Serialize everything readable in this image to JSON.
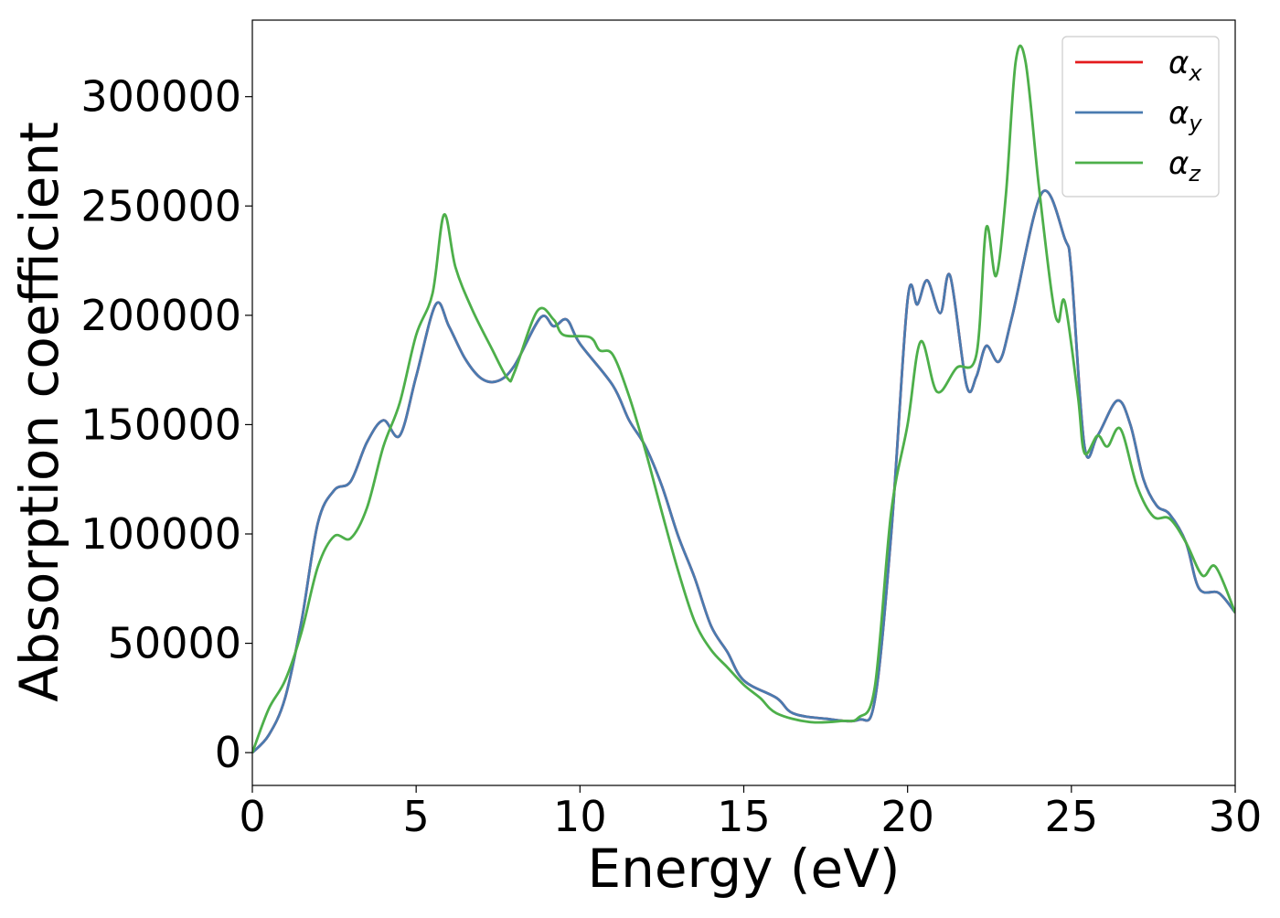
{
  "chart_data": {
    "type": "line",
    "title": "",
    "xlabel": "Energy (eV)",
    "ylabel": "Absorption coefficient",
    "xlim": [
      0,
      30
    ],
    "ylim": [
      -15000,
      335000
    ],
    "x_ticks": [
      0,
      5,
      10,
      15,
      20,
      25,
      30
    ],
    "y_ticks": [
      0,
      50000,
      100000,
      150000,
      200000,
      250000,
      300000
    ],
    "grid": false,
    "legend_position": "top-right",
    "series": [
      {
        "name": "α_x",
        "legend_base": "α",
        "legend_sub": "x",
        "color": "#e41a1c",
        "points": [
          [
            0,
            0
          ],
          [
            0.5,
            8000
          ],
          [
            1,
            25000
          ],
          [
            1.5,
            60000
          ],
          [
            2,
            105000
          ],
          [
            2.5,
            120000
          ],
          [
            3,
            124000
          ],
          [
            3.5,
            142000
          ],
          [
            4,
            152000
          ],
          [
            4.5,
            145000
          ],
          [
            5,
            172000
          ],
          [
            5.6,
            205000
          ],
          [
            6,
            195000
          ],
          [
            6.5,
            180000
          ],
          [
            7,
            171000
          ],
          [
            7.5,
            170000
          ],
          [
            8,
            177000
          ],
          [
            8.8,
            199000
          ],
          [
            9.2,
            195000
          ],
          [
            9.6,
            198000
          ],
          [
            10,
            187000
          ],
          [
            11,
            168000
          ],
          [
            11.5,
            152000
          ],
          [
            12,
            140000
          ],
          [
            12.5,
            122000
          ],
          [
            13,
            99000
          ],
          [
            13.5,
            80000
          ],
          [
            14,
            58000
          ],
          [
            14.5,
            46000
          ],
          [
            15,
            33000
          ],
          [
            16,
            25000
          ],
          [
            16.5,
            18000
          ],
          [
            17.5,
            15500
          ],
          [
            18.5,
            15000
          ],
          [
            19,
            24000
          ],
          [
            19.5,
            100000
          ],
          [
            20,
            207000
          ],
          [
            20.3,
            205000
          ],
          [
            20.6,
            216000
          ],
          [
            21,
            201000
          ],
          [
            21.3,
            218000
          ],
          [
            21.8,
            168000
          ],
          [
            22.1,
            172000
          ],
          [
            22.4,
            186000
          ],
          [
            22.8,
            179000
          ],
          [
            23.2,
            200000
          ],
          [
            24.1,
            256000
          ],
          [
            24.8,
            235000
          ],
          [
            25,
            220000
          ],
          [
            25.4,
            140000
          ],
          [
            25.8,
            145000
          ],
          [
            26.4,
            161000
          ],
          [
            26.8,
            150000
          ],
          [
            27.2,
            125000
          ],
          [
            27.6,
            113000
          ],
          [
            28,
            109000
          ],
          [
            28.5,
            96000
          ],
          [
            28.9,
            75000
          ],
          [
            29.5,
            73000
          ],
          [
            30,
            64000
          ]
        ]
      },
      {
        "name": "α_y",
        "legend_base": "α",
        "legend_sub": "y",
        "color": "#4a7bb0",
        "points": [
          [
            0,
            0
          ],
          [
            0.5,
            8000
          ],
          [
            1,
            25000
          ],
          [
            1.5,
            60000
          ],
          [
            2,
            105000
          ],
          [
            2.5,
            120000
          ],
          [
            3,
            124000
          ],
          [
            3.5,
            142000
          ],
          [
            4,
            152000
          ],
          [
            4.5,
            145000
          ],
          [
            5,
            172000
          ],
          [
            5.6,
            205000
          ],
          [
            6,
            195000
          ],
          [
            6.5,
            180000
          ],
          [
            7,
            171000
          ],
          [
            7.5,
            170000
          ],
          [
            8,
            177000
          ],
          [
            8.8,
            199000
          ],
          [
            9.2,
            195000
          ],
          [
            9.6,
            198000
          ],
          [
            10,
            187000
          ],
          [
            11,
            168000
          ],
          [
            11.5,
            152000
          ],
          [
            12,
            140000
          ],
          [
            12.5,
            122000
          ],
          [
            13,
            99000
          ],
          [
            13.5,
            80000
          ],
          [
            14,
            58000
          ],
          [
            14.5,
            46000
          ],
          [
            15,
            33000
          ],
          [
            16,
            25000
          ],
          [
            16.5,
            18000
          ],
          [
            17.5,
            15500
          ],
          [
            18.5,
            15000
          ],
          [
            19,
            24000
          ],
          [
            19.5,
            100000
          ],
          [
            20,
            207000
          ],
          [
            20.3,
            205000
          ],
          [
            20.6,
            216000
          ],
          [
            21,
            201000
          ],
          [
            21.3,
            218000
          ],
          [
            21.8,
            168000
          ],
          [
            22.1,
            172000
          ],
          [
            22.4,
            186000
          ],
          [
            22.8,
            179000
          ],
          [
            23.2,
            200000
          ],
          [
            24.1,
            256000
          ],
          [
            24.8,
            235000
          ],
          [
            25,
            220000
          ],
          [
            25.4,
            140000
          ],
          [
            25.8,
            145000
          ],
          [
            26.4,
            161000
          ],
          [
            26.8,
            150000
          ],
          [
            27.2,
            125000
          ],
          [
            27.6,
            113000
          ],
          [
            28,
            109000
          ],
          [
            28.5,
            96000
          ],
          [
            28.9,
            75000
          ],
          [
            29.5,
            73000
          ],
          [
            30,
            64000
          ]
        ]
      },
      {
        "name": "α_z",
        "legend_base": "α",
        "legend_sub": "z",
        "color": "#4daf4a",
        "points": [
          [
            0,
            0
          ],
          [
            0.5,
            20000
          ],
          [
            1,
            33000
          ],
          [
            1.5,
            55000
          ],
          [
            2,
            85000
          ],
          [
            2.5,
            99000
          ],
          [
            3,
            98000
          ],
          [
            3.5,
            112000
          ],
          [
            4,
            140000
          ],
          [
            4.5,
            160000
          ],
          [
            5,
            191000
          ],
          [
            5.5,
            210000
          ],
          [
            5.85,
            246000
          ],
          [
            6.2,
            222000
          ],
          [
            6.7,
            203000
          ],
          [
            7.3,
            185000
          ],
          [
            7.8,
            171000
          ],
          [
            8,
            174000
          ],
          [
            8.7,
            202000
          ],
          [
            9.2,
            198000
          ],
          [
            9.5,
            191000
          ],
          [
            10.3,
            190000
          ],
          [
            10.6,
            184000
          ],
          [
            11,
            182000
          ],
          [
            11.5,
            163000
          ],
          [
            12,
            138000
          ],
          [
            12.5,
            110000
          ],
          [
            13,
            83000
          ],
          [
            13.5,
            60000
          ],
          [
            14,
            47000
          ],
          [
            14.5,
            39000
          ],
          [
            15,
            31000
          ],
          [
            15.5,
            25000
          ],
          [
            16,
            18000
          ],
          [
            17,
            14000
          ],
          [
            18,
            14500
          ],
          [
            18.5,
            16000
          ],
          [
            19,
            30000
          ],
          [
            19.5,
            110000
          ],
          [
            20,
            150000
          ],
          [
            20.4,
            188000
          ],
          [
            20.9,
            165000
          ],
          [
            21.5,
            176000
          ],
          [
            22.1,
            182000
          ],
          [
            22.4,
            240000
          ],
          [
            22.7,
            218000
          ],
          [
            23,
            255000
          ],
          [
            23.3,
            316000
          ],
          [
            23.6,
            316000
          ],
          [
            24,
            260000
          ],
          [
            24.4,
            210000
          ],
          [
            24.6,
            197000
          ],
          [
            24.8,
            206000
          ],
          [
            25.2,
            163000
          ],
          [
            25.4,
            137000
          ],
          [
            25.8,
            145000
          ],
          [
            26.1,
            140000
          ],
          [
            26.5,
            148000
          ],
          [
            27,
            122000
          ],
          [
            27.5,
            108000
          ],
          [
            28,
            107000
          ],
          [
            28.5,
            96000
          ],
          [
            29,
            81000
          ],
          [
            29.4,
            85000
          ],
          [
            30,
            64000
          ]
        ]
      }
    ]
  }
}
